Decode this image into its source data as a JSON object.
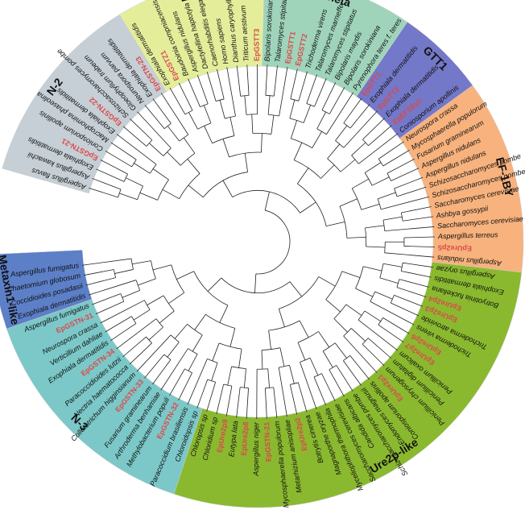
{
  "colors": {
    "branch": "#222222",
    "leaf_text": "#111111",
    "leaf_highlight": "#d94a4a",
    "band_edge": "#cccccc"
  },
  "clades": [
    {
      "label": "N-2",
      "color": "#c6cfd5",
      "leaf_start": 0,
      "leaf_end": 12
    },
    {
      "label": "Zeta",
      "color": "#e4ee9a",
      "leaf_start": 13,
      "leaf_end": 22
    },
    {
      "label": "Theta",
      "color": "#9fd4bb",
      "leaf_start": 23,
      "leaf_end": 32
    },
    {
      "label": "GTT1",
      "color": "#7478c8",
      "leaf_start": 33,
      "leaf_end": 38
    },
    {
      "label": "EF-1BY",
      "color": "#f7b27d",
      "leaf_start": 39,
      "leaf_end": 51
    },
    {
      "label": "Ure2p-like",
      "color": "#8ab92f",
      "leaf_start": 52,
      "leaf_end": 82
    },
    {
      "label": "N-3",
      "color": "#7cc8c8",
      "leaf_start": 83,
      "leaf_end": 98
    },
    {
      "label": "Metaxin1-like",
      "color": "#5c7fc8",
      "leaf_start": 99,
      "leaf_end": 103
    }
  ],
  "leaves": [
    {
      "name": "Aspergillus flavus",
      "ep": false
    },
    {
      "name": "Aspergillus kawachii",
      "ep": false
    },
    {
      "name": "Exophiala dermatitidis",
      "ep": false
    },
    {
      "name": "EpGSTN-21",
      "ep": true
    },
    {
      "name": "Coniosporium apollinis",
      "ep": false
    },
    {
      "name": "Macrophomina phaseolina",
      "ep": false
    },
    {
      "name": "Exophiala dermatitidis",
      "ep": false
    },
    {
      "name": "EpGSTN-22",
      "ep": true
    },
    {
      "name": "Schizosaccharomyces pombe",
      "ep": false
    },
    {
      "name": "Gloeophyllum trabeum",
      "ep": false
    },
    {
      "name": "Neurospora parvum",
      "ep": false
    },
    {
      "name": "Exophiala dermatitidis",
      "ep": false
    },
    {
      "name": "EpGSTN-23",
      "ep": true
    },
    {
      "name": "Exophiala dermatitidis",
      "ep": false
    },
    {
      "name": "EpGSTZ1",
      "ep": true
    },
    {
      "name": "Baudoinia compniacensis",
      "ep": false
    },
    {
      "name": "Aspergillus nidulans",
      "ep": false
    },
    {
      "name": "Dactylellina haptotyla",
      "ep": false
    },
    {
      "name": "Caenorhabditis elegans",
      "ep": false
    },
    {
      "name": "Homo sapiens",
      "ep": false
    },
    {
      "name": "Dianthus caryophyllus",
      "ep": false
    },
    {
      "name": "Triticum aestivum",
      "ep": false
    },
    {
      "name": "EpGSTT3",
      "ep": true
    },
    {
      "name": "Bipolaris sorokiniana",
      "ep": false
    },
    {
      "name": "Talaromyces stipitatus",
      "ep": false
    },
    {
      "name": "EpGSTT1",
      "ep": true
    },
    {
      "name": "EpGSTT2",
      "ep": true
    },
    {
      "name": "Trichoderma virens",
      "ep": false
    },
    {
      "name": "Talaromyces marneffei",
      "ep": false
    },
    {
      "name": "Talaromyces stipitatus",
      "ep": false
    },
    {
      "name": "Bipolaris maydis",
      "ep": false
    },
    {
      "name": "Bipolaris sorokiniana",
      "ep": false
    },
    {
      "name": "Pyrenophora teres f. teres",
      "ep": false
    },
    {
      "name": "EpGTT1",
      "ep": true
    },
    {
      "name": "Exophiala dermatitidis",
      "ep": false
    },
    {
      "name": "EpGTT2",
      "ep": true
    },
    {
      "name": "Exophiala dermatitidis",
      "ep": false
    },
    {
      "name": "EpEF1By1",
      "ep": true
    },
    {
      "name": "Coniosporium apollinis",
      "ep": false
    },
    {
      "name": "Neurospora crassa",
      "ep": false
    },
    {
      "name": "Mycosphaerella populorum",
      "ep": false
    },
    {
      "name": "Fusarium graminearum",
      "ep": false
    },
    {
      "name": "Aspergillus nidulans",
      "ep": false
    },
    {
      "name": "Aspergillus nidulans",
      "ep": false
    },
    {
      "name": "Schizosaccharomyces pombe",
      "ep": false
    },
    {
      "name": "Schizosaccharomyces pombe",
      "ep": false
    },
    {
      "name": "Saccharomyces cerevisiae",
      "ep": false
    },
    {
      "name": "Ashbya gossypii",
      "ep": false
    },
    {
      "name": "Saccharomyces cerevisiae",
      "ep": false
    },
    {
      "name": "Aspergillus terreus",
      "ep": false
    },
    {
      "name": "EpUre2p5",
      "ep": true
    },
    {
      "name": "Aspergillus nidulans",
      "ep": false
    },
    {
      "name": "Aspergillus oryzae",
      "ep": false
    },
    {
      "name": "Exophiala dermatitidis",
      "ep": false
    },
    {
      "name": "Botryotinia fuckeliana",
      "ep": false
    },
    {
      "name": "EpUre2p4",
      "ep": true
    },
    {
      "name": "EpUre2p3",
      "ep": true
    },
    {
      "name": "Trichoderma atroviride",
      "ep": false
    },
    {
      "name": "Trichoderma virens",
      "ep": false
    },
    {
      "name": "EpUre2p6",
      "ep": true
    },
    {
      "name": "EpUre2p7",
      "ep": true
    },
    {
      "name": "Penicillium oxalicum",
      "ep": false
    },
    {
      "name": "Penicillium digitatum",
      "ep": false
    },
    {
      "name": "Penicillium chrysogenum",
      "ep": false
    },
    {
      "name": "EpUre2p1",
      "ep": true
    },
    {
      "name": "Coniosporium apollinis",
      "ep": false
    },
    {
      "name": "Endomyces magnusii",
      "ep": false
    },
    {
      "name": "Schizosaccharomyces pombe",
      "ep": false
    },
    {
      "name": "Candida albicans",
      "ep": false
    },
    {
      "name": "Saccharomyces cerevisiae",
      "ep": false
    },
    {
      "name": "Myceliophthora thermophila",
      "ep": false
    },
    {
      "name": "Magnaporthe oryzae",
      "ep": false
    },
    {
      "name": "Botrytis cinerea",
      "ep": false
    },
    {
      "name": "EpUre2p2",
      "ep": true
    },
    {
      "name": "Metarhizium anisopliae",
      "ep": false
    },
    {
      "name": "Mycosphaerella populorum",
      "ep": false
    },
    {
      "name": "EpGSTN-21",
      "ep": true
    },
    {
      "name": "Aspergillus niger",
      "ep": false
    },
    {
      "name": "EpUre2p8",
      "ep": true
    },
    {
      "name": "Eutypa lata",
      "ep": false
    },
    {
      "name": "EpUre2p9",
      "ep": true
    },
    {
      "name": "Chloridium sp",
      "ep": false
    },
    {
      "name": "Chloropsis sp",
      "ep": false
    },
    {
      "name": "Chloroidopsis sp",
      "ep": false
    },
    {
      "name": "Paracoccidium brasiliensis",
      "ep": false
    },
    {
      "name": "EpGSTN-32",
      "ep": true
    },
    {
      "name": "Methylobacterium populi",
      "ep": false
    },
    {
      "name": "Arthroderma benhamiae",
      "ep": false
    },
    {
      "name": "Fusarium graminearum",
      "ep": false
    },
    {
      "name": "EpGSTN-33",
      "ep": true
    },
    {
      "name": "Colletotrichum higginsianum",
      "ep": false
    },
    {
      "name": "Nectria haematococca",
      "ep": false
    },
    {
      "name": "Paracoccidioides lutzii",
      "ep": false
    },
    {
      "name": "EpGSTN-34",
      "ep": true
    },
    {
      "name": "Exophiala dermatitidis",
      "ep": false
    },
    {
      "name": "Verticillium dahliae",
      "ep": false
    },
    {
      "name": "Neurospora crassa",
      "ep": false
    },
    {
      "name": "EpGSTN-31",
      "ep": true
    },
    {
      "name": "Aspergillus fumigatus",
      "ep": false
    },
    {
      "name": "Exophiala dermatitidis",
      "ep": false
    },
    {
      "name": "Coccidioides posadasii",
      "ep": false
    },
    {
      "name": "Chaetomium globosum",
      "ep": false
    },
    {
      "name": "Aspergillus fumigatus",
      "ep": false
    }
  ]
}
